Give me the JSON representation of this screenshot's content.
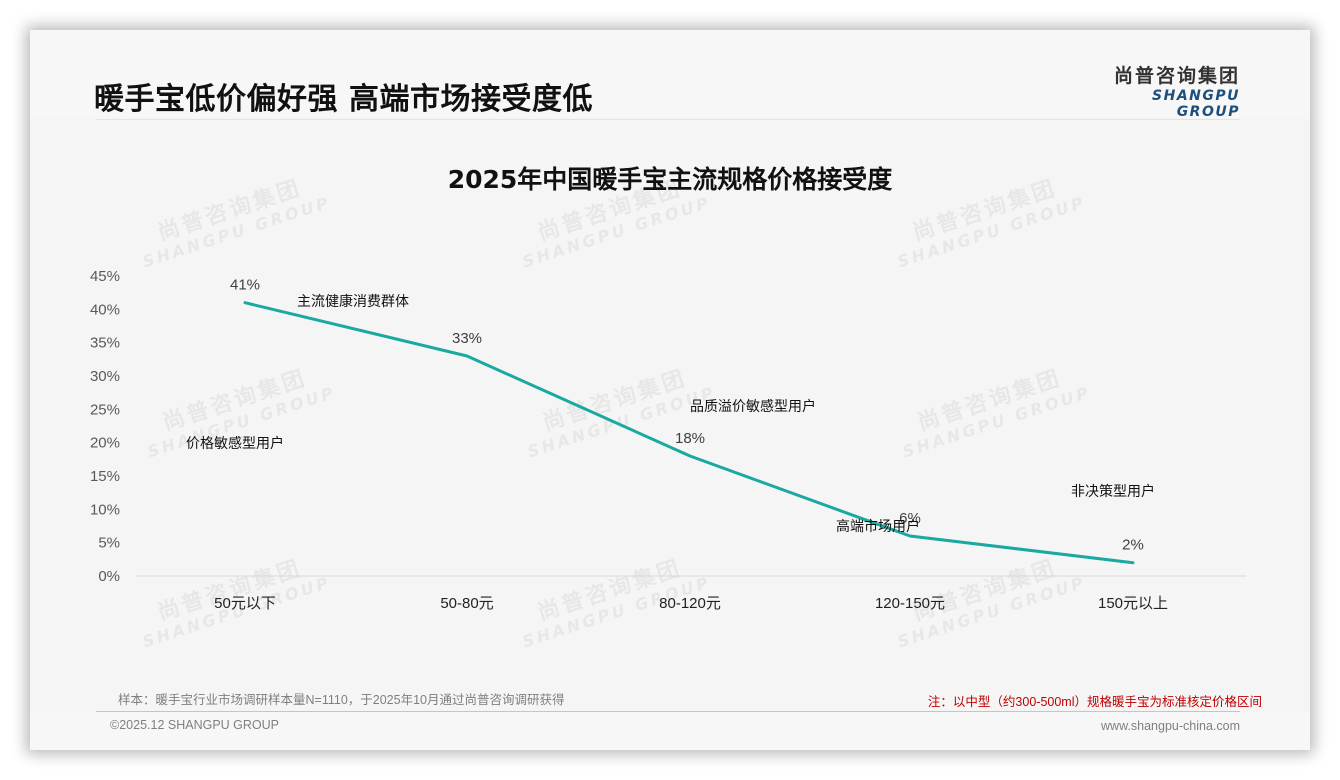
{
  "header": {
    "title": "暖手宝低价偏好强 高端市场接受度低",
    "logo_cn": "尚普咨询集团",
    "logo_en": "SHANGPU GROUP"
  },
  "watermark": {
    "cn": "尚普咨询集团",
    "en": "SHANGPU GROUP"
  },
  "chart_data": {
    "type": "line",
    "title": "2025年中国暖手宝主流规格价格接受度",
    "categories": [
      "50元以下",
      "50-80元",
      "80-120元",
      "120-150元",
      "150元以上"
    ],
    "values": [
      41,
      33,
      18,
      6,
      2
    ],
    "value_labels": [
      "41%",
      "33%",
      "18%",
      "6%",
      "2%"
    ],
    "xlabel": "",
    "ylabel": "",
    "ylim": [
      0,
      45
    ],
    "yticks": [
      "0%",
      "5%",
      "10%",
      "15%",
      "20%",
      "25%",
      "30%",
      "35%",
      "40%",
      "45%"
    ],
    "grid": false,
    "legend": null,
    "line_color": "#1aa9a0",
    "annotations": [
      {
        "text": "主流健康消费群体",
        "near": "50元以下-50-80元"
      },
      {
        "text": "价格敏感型用户",
        "near": "50元以下"
      },
      {
        "text": "品质溢价敏感型用户",
        "near": "80-120元"
      },
      {
        "text": "高端市场用户",
        "near": "120-150元"
      },
      {
        "text": "非决策型用户",
        "near": "150元以上"
      }
    ]
  },
  "footer": {
    "sample_note": "样本：暖手宝行业市场调研样本量N=1110，于2025年10月通过尚普咨询调研获得",
    "red_note": "注：以中型（约300-500ml）规格暖手宝为标准核定价格区间",
    "copyright": "©2025.12 SHANGPU GROUP",
    "website": "www.shangpu-china.com"
  },
  "colors": {
    "line": "#1aa9a0",
    "note_red": "#c00000",
    "logo_blue": "#1d4f7c",
    "background": "#f5f5f5"
  }
}
